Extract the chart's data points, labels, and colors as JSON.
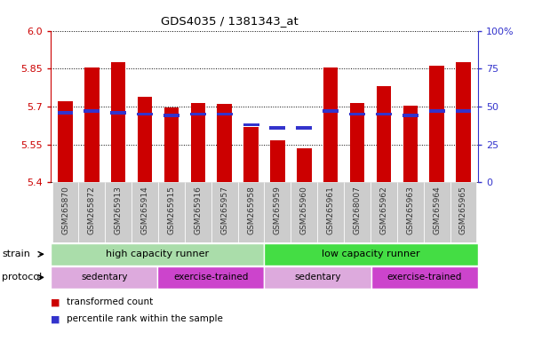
{
  "title": "GDS4035 / 1381343_at",
  "samples": [
    "GSM265870",
    "GSM265872",
    "GSM265913",
    "GSM265914",
    "GSM265915",
    "GSM265916",
    "GSM265957",
    "GSM265958",
    "GSM265959",
    "GSM265960",
    "GSM265961",
    "GSM268007",
    "GSM265962",
    "GSM265963",
    "GSM265964",
    "GSM265965"
  ],
  "transformed_count": [
    5.72,
    5.855,
    5.875,
    5.74,
    5.695,
    5.715,
    5.71,
    5.62,
    5.565,
    5.535,
    5.855,
    5.715,
    5.78,
    5.705,
    5.86,
    5.875
  ],
  "percentile_rank": [
    46,
    47,
    46,
    45,
    44,
    45,
    45,
    38,
    36,
    36,
    47,
    45,
    45,
    44,
    47,
    47
  ],
  "ylim_left": [
    5.4,
    6.0
  ],
  "ylim_right": [
    0,
    100
  ],
  "yticks_left": [
    5.4,
    5.55,
    5.7,
    5.85,
    6.0
  ],
  "yticks_right": [
    0,
    25,
    50,
    75,
    100
  ],
  "bar_color": "#cc0000",
  "dot_color": "#3333cc",
  "bar_bottom": 5.4,
  "background_color": "#ffffff",
  "plot_bg_color": "#ffffff",
  "strain_groups": [
    {
      "label": "high capacity runner",
      "start": 0,
      "end": 8,
      "color": "#aaddaa"
    },
    {
      "label": "low capacity runner",
      "start": 8,
      "end": 16,
      "color": "#44dd44"
    }
  ],
  "protocol_groups": [
    {
      "label": "sedentary",
      "start": 0,
      "end": 4,
      "color": "#ddaadd"
    },
    {
      "label": "exercise-trained",
      "start": 4,
      "end": 8,
      "color": "#cc44cc"
    },
    {
      "label": "sedentary",
      "start": 8,
      "end": 12,
      "color": "#ddaadd"
    },
    {
      "label": "exercise-trained",
      "start": 12,
      "end": 16,
      "color": "#cc44cc"
    }
  ],
  "legend_items": [
    {
      "label": "transformed count",
      "color": "#cc0000"
    },
    {
      "label": "percentile rank within the sample",
      "color": "#3333cc"
    }
  ],
  "left_axis_color": "#cc0000",
  "right_axis_color": "#3333cc",
  "xlabel_strain": "strain",
  "xlabel_protocol": "protocol",
  "xtick_bg_color": "#cccccc"
}
